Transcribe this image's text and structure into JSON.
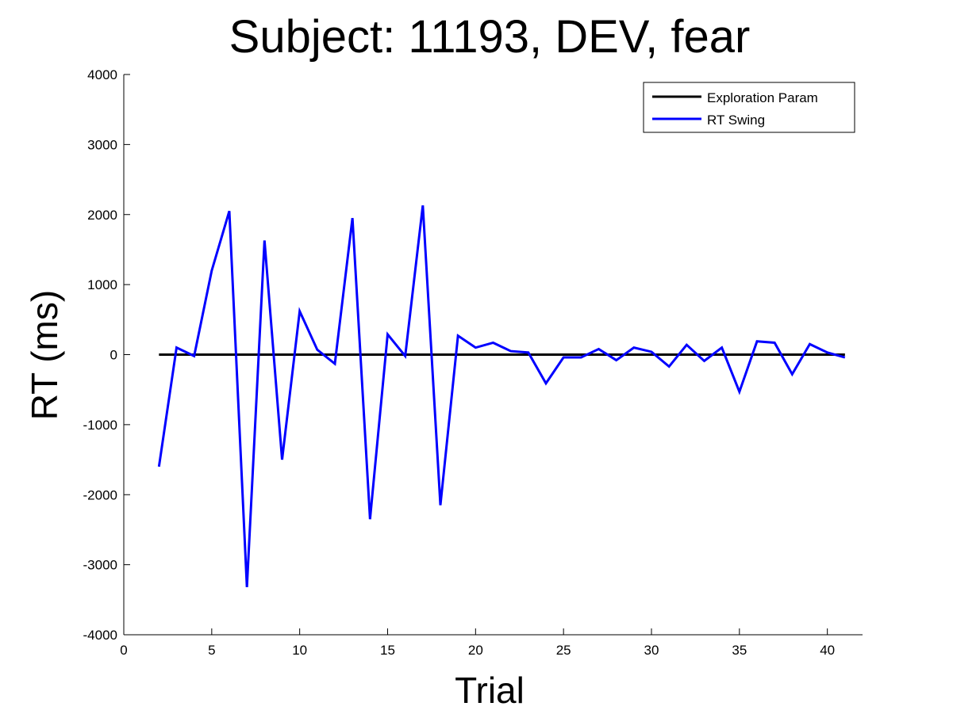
{
  "chart_data": {
    "type": "line",
    "title": "Subject: 11193, DEV, fear",
    "xlabel": "Trial",
    "ylabel": "RT (ms)",
    "xlim": [
      0,
      42
    ],
    "ylim": [
      -4000,
      4000
    ],
    "xticks": [
      0,
      5,
      10,
      15,
      20,
      25,
      30,
      35,
      40
    ],
    "yticks": [
      -4000,
      -3000,
      -2000,
      -1000,
      0,
      1000,
      2000,
      3000,
      4000
    ],
    "grid": false,
    "legend_position": "top-right",
    "series": [
      {
        "name": "Exploration Param",
        "color": "#000000",
        "x": [
          2,
          41
        ],
        "y": [
          0,
          0
        ]
      },
      {
        "name": "RT Swing",
        "color": "#0000ff",
        "x": [
          2,
          3,
          4,
          5,
          6,
          7,
          8,
          9,
          10,
          11,
          12,
          13,
          14,
          15,
          16,
          17,
          18,
          19,
          20,
          21,
          22,
          23,
          24,
          25,
          26,
          27,
          28,
          29,
          30,
          31,
          32,
          33,
          34,
          35,
          36,
          37,
          38,
          39,
          40,
          41
        ],
        "y": [
          -1600,
          100,
          -20,
          1200,
          2050,
          -3320,
          1630,
          -1500,
          620,
          70,
          -130,
          1950,
          -2350,
          290,
          -20,
          2130,
          -2150,
          270,
          100,
          170,
          50,
          30,
          -410,
          -40,
          -40,
          80,
          -80,
          100,
          40,
          -170,
          140,
          -90,
          100,
          -530,
          190,
          170,
          -280,
          150,
          30,
          -40
        ]
      }
    ]
  }
}
